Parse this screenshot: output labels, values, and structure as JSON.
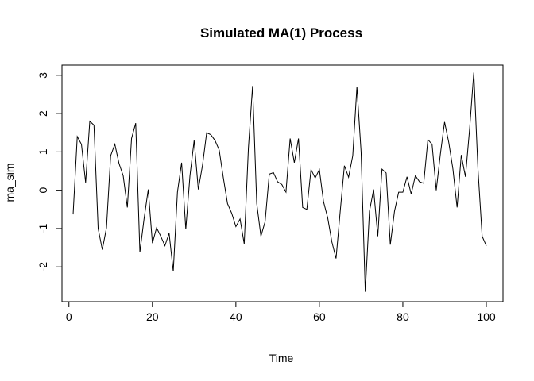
{
  "chart_data": {
    "type": "line",
    "title": "Simulated MA(1) Process",
    "xlabel": "Time",
    "ylabel": "ma_sim",
    "xlim": [
      1,
      100
    ],
    "ylim": [
      -2.7,
      3.1
    ],
    "x_ticks": [
      0,
      20,
      40,
      60,
      80,
      100
    ],
    "y_ticks": [
      -2,
      -1,
      0,
      1,
      2,
      3
    ],
    "grid": false,
    "legend": "none",
    "colors": {
      "line": "#000000",
      "background": "#ffffff"
    },
    "series": [
      {
        "x": [
          1,
          2,
          3,
          4,
          5,
          6,
          7,
          8,
          9,
          10,
          11,
          12,
          13,
          14,
          15,
          16,
          17,
          18,
          19,
          20,
          21,
          22,
          23,
          24,
          25,
          26,
          27,
          28,
          29,
          30,
          31,
          32,
          33,
          34,
          35,
          36,
          37,
          38,
          39,
          40,
          41,
          42,
          43,
          44,
          45,
          46,
          47,
          48,
          49,
          50,
          51,
          52,
          53,
          54,
          55,
          56,
          57,
          58,
          59,
          60,
          61,
          62,
          63,
          64,
          65,
          66,
          67,
          68,
          69,
          70,
          71,
          72,
          73,
          74,
          75,
          76,
          77,
          78,
          79,
          80,
          81,
          82,
          83,
          84,
          85,
          86,
          87,
          88,
          89,
          90,
          91,
          92,
          93,
          94,
          95,
          96,
          97,
          98,
          99,
          100
        ],
        "values": [
          -0.63,
          1.4,
          1.2,
          0.2,
          1.8,
          1.7,
          -1.0,
          -1.55,
          -0.98,
          0.9,
          1.2,
          0.7,
          0.38,
          -0.45,
          1.35,
          1.75,
          -1.62,
          -0.75,
          0.02,
          -1.38,
          -0.98,
          -1.2,
          -1.45,
          -1.12,
          -2.12,
          -0.05,
          0.72,
          -1.02,
          0.38,
          1.3,
          0.02,
          0.65,
          1.5,
          1.45,
          1.3,
          1.05,
          0.32,
          -0.35,
          -0.6,
          -0.95,
          -0.75,
          -1.4,
          1.1,
          2.72,
          -0.35,
          -1.2,
          -0.82,
          0.42,
          0.46,
          0.22,
          0.15,
          -0.05,
          1.35,
          0.72,
          1.35,
          -0.45,
          -0.5,
          0.54,
          0.32,
          0.54,
          -0.3,
          -0.72,
          -1.35,
          -1.78,
          -0.55,
          0.64,
          0.34,
          0.9,
          2.7,
          1.0,
          -2.65,
          -0.55,
          0.02,
          -1.2,
          0.55,
          0.45,
          -1.42,
          -0.55,
          -0.05,
          -0.05,
          0.35,
          -0.1,
          0.38,
          0.22,
          0.18,
          1.32,
          1.2,
          0.0,
          0.95,
          1.78,
          1.25,
          0.55,
          -0.45,
          0.92,
          0.35,
          1.6,
          3.07,
          0.55,
          -1.2,
          -1.45
        ]
      }
    ]
  }
}
